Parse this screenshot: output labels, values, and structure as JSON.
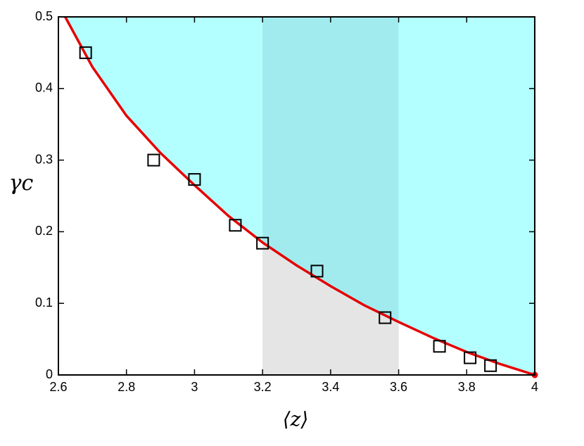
{
  "chart_data": {
    "type": "scatter",
    "xlabel": "⟨z⟩",
    "ylabel": "γc",
    "xlim": [
      2.6,
      4
    ],
    "ylim": [
      0,
      0.5
    ],
    "xticks": [
      2.6,
      2.8,
      3,
      3.2,
      3.4,
      3.6,
      3.8,
      4
    ],
    "yticks": [
      0,
      0.1,
      0.2,
      0.3,
      0.4,
      0.5
    ],
    "series": [
      {
        "color": "#000000",
        "x": [
          2.68,
          2.88,
          3.0,
          3.12,
          3.2,
          3.36,
          3.56,
          3.72,
          3.81,
          3.87
        ],
        "values": [
          0.45,
          0.3,
          0.273,
          0.209,
          0.184,
          0.145,
          0.08,
          0.04,
          0.024,
          0.013
        ]
      }
    ],
    "curve": {
      "color": "#e60000",
      "x": [
        2.62,
        2.7,
        2.8,
        2.9,
        3.0,
        3.1,
        3.2,
        3.3,
        3.4,
        3.5,
        3.6,
        3.7,
        3.8,
        3.9,
        4.0
      ],
      "values": [
        0.5,
        0.43,
        0.362,
        0.31,
        0.265,
        0.222,
        0.185,
        0.153,
        0.124,
        0.097,
        0.074,
        0.052,
        0.032,
        0.015,
        0
      ]
    },
    "region_color": "#b3feff",
    "band": {
      "x": [
        3.2,
        3.6
      ],
      "color_below": "#e5e5e5",
      "color_above": "#a1ebee"
    }
  }
}
